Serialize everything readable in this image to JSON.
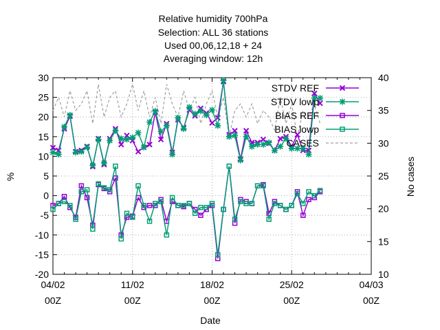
{
  "chart_data": {
    "type": "line",
    "title_lines": [
      "Relative humidity 700hPa",
      "Selection: ALL      36 stations",
      "Used  00,06,12,18  + 24",
      "Averaging window: 12h"
    ],
    "xlabel": "Date",
    "ylabel": "%",
    "y2label": "No cases",
    "ylim": [
      -20,
      30
    ],
    "y2lim": [
      10,
      40
    ],
    "xlim": [
      0,
      28
    ],
    "yticks": [
      "-20",
      "-15",
      "-10",
      "-5",
      "0",
      "5",
      "10",
      "15",
      "20",
      "25",
      "30"
    ],
    "y2ticks": [
      "10",
      "15",
      "20",
      "25",
      "30",
      "35",
      "40"
    ],
    "xticks": [
      {
        "line1": "04/02",
        "line2": "00Z"
      },
      {
        "line1": "11/02",
        "line2": "00Z"
      },
      {
        "line1": "18/02",
        "line2": "00Z"
      },
      {
        "line1": "25/02",
        "line2": "00Z"
      },
      {
        "line1": "04/03",
        "line2": "00Z"
      }
    ],
    "grid": true,
    "legend_position": "top-right",
    "x": [
      0,
      0.5,
      1,
      1.5,
      2,
      2.5,
      3,
      3.5,
      4,
      4.5,
      5,
      5.5,
      6,
      6.5,
      7,
      7.5,
      8,
      8.5,
      9,
      9.5,
      10,
      10.5,
      11,
      11.5,
      12,
      12.5,
      13,
      13.5,
      14,
      14.5,
      15,
      15.5,
      16,
      16.5,
      17,
      17.5,
      18,
      18.5,
      19,
      19.5,
      20,
      20.5,
      21,
      21.5,
      22,
      22.5,
      23,
      23.5
    ],
    "series": [
      {
        "name": "STDV REF",
        "color": "#9400d3",
        "marker": "cross",
        "axis": "y1",
        "values": [
          12.2,
          11.5,
          17.0,
          20.2,
          11.2,
          11.5,
          12.5,
          7.4,
          14.5,
          7.9,
          14.5,
          17.0,
          13.0,
          15.3,
          14.0,
          11.2,
          12.3,
          13.0,
          21.2,
          14.3,
          18.3,
          11.0,
          19.3,
          17.3,
          21.8,
          20.3,
          22.2,
          21.0,
          18.5,
          19.8,
          29.0,
          15.5,
          16.5,
          9.3,
          16.5,
          13.5,
          13.5,
          14.3,
          13.3,
          11.5,
          14.5,
          15.0,
          12.5,
          15.5,
          11.5,
          11.5,
          26.0,
          23.5
        ]
      },
      {
        "name": "STDV lowp",
        "color": "#009e73",
        "marker": "star",
        "axis": "y1",
        "values": [
          11.0,
          10.5,
          17.5,
          20.5,
          11.0,
          11.2,
          12.3,
          7.7,
          14.3,
          8.3,
          14.0,
          16.5,
          14.5,
          14.3,
          14.8,
          16.0,
          12.3,
          18.7,
          21.5,
          16.3,
          17.8,
          10.5,
          19.8,
          17.0,
          22.5,
          20.8,
          21.5,
          20.5,
          21.8,
          17.8,
          29.3,
          15.0,
          15.3,
          9.0,
          15.0,
          12.5,
          13.0,
          13.0,
          13.5,
          11.5,
          12.5,
          14.5,
          12.0,
          12.0,
          12.0,
          10.5,
          24.8,
          24.8
        ]
      },
      {
        "name": "BIAS REF",
        "color": "#9400d3",
        "marker": "square",
        "axis": "y1",
        "values": [
          -2.5,
          -2.0,
          -0.2,
          -3.0,
          -5.5,
          2.5,
          -0.5,
          -7.5,
          2.8,
          1.8,
          1.0,
          4.5,
          -10.0,
          -5.5,
          -5.2,
          -0.5,
          -3.0,
          -2.5,
          -2.5,
          -1.0,
          -6.5,
          -1.5,
          -2.5,
          -2.8,
          -2.0,
          -3.5,
          -5.0,
          -3.5,
          -2.5,
          -16.0,
          -3.5,
          7.5,
          -7.0,
          -1.0,
          -1.5,
          -2.0,
          2.5,
          2.8,
          -4.5,
          -1.5,
          -2.5,
          -3.5,
          -2.5,
          1.0,
          -5.0,
          -1.0,
          -0.5,
          1.0
        ]
      },
      {
        "name": "BIAS lowp",
        "color": "#009e73",
        "marker": "square",
        "axis": "y1",
        "values": [
          -3.5,
          -2.0,
          -1.5,
          -2.5,
          -6.0,
          1.0,
          1.5,
          -8.5,
          3.0,
          2.0,
          1.5,
          7.5,
          -11.0,
          -4.5,
          -5.5,
          2.5,
          -2.5,
          -6.5,
          -2.0,
          -1.5,
          -10.0,
          -0.5,
          -2.5,
          -2.5,
          -2.0,
          -4.5,
          -3.0,
          -3.0,
          -2.0,
          -15.0,
          -3.5,
          7.5,
          -6.0,
          -1.5,
          -2.0,
          -2.0,
          2.5,
          2.5,
          -6.0,
          -2.0,
          -2.5,
          -3.5,
          -2.5,
          0.5,
          -2.0,
          1.0,
          0.0,
          1.3
        ]
      },
      {
        "name": "CASES",
        "color": "#a0a0a0",
        "marker": "none",
        "dash": true,
        "axis": "y2",
        "values": [
          35,
          37,
          34,
          38,
          35,
          36,
          38,
          33,
          39,
          34,
          37,
          38,
          34,
          36,
          39,
          35,
          38,
          34,
          37,
          33,
          39,
          36,
          34,
          38,
          35,
          37,
          33,
          36,
          38,
          34,
          37,
          31,
          35,
          36,
          34,
          36,
          33,
          35,
          34,
          32,
          37,
          33,
          36,
          31,
          35,
          34,
          36,
          33
        ]
      }
    ]
  }
}
